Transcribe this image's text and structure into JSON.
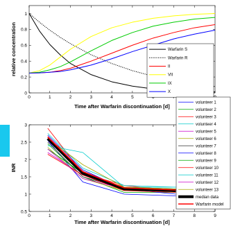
{
  "chart_data": [
    {
      "type": "line",
      "xlabel": "Time after Warfarin discontinuation [d]",
      "ylabel": "relative concentration",
      "xlim": [
        0,
        9
      ],
      "ylim": [
        0,
        1.1
      ],
      "xticks": [
        "0",
        "1",
        "2",
        "3",
        "4",
        "5",
        "6",
        "7",
        "8",
        "9"
      ],
      "yticks": [
        "0",
        "0.2",
        "0.4",
        "0.6",
        "0.8",
        "1"
      ],
      "grid": false,
      "legend_placement": "right",
      "series": [
        {
          "name": "Warfarin S",
          "color": "#000000",
          "dash": "solid",
          "x": [
            0,
            0.5,
            1,
            1.5,
            2,
            3,
            4,
            5,
            6,
            7,
            8,
            9
          ],
          "y": [
            1.0,
            0.78,
            0.61,
            0.48,
            0.37,
            0.23,
            0.14,
            0.085,
            0.05,
            0.03,
            0.02,
            0.012
          ]
        },
        {
          "name": "Warfarin R",
          "color": "#000000",
          "dash": "dotted",
          "x": [
            0,
            0.5,
            1,
            1.5,
            2,
            3,
            4,
            5,
            6,
            7,
            8,
            9
          ],
          "y": [
            1.0,
            0.89,
            0.79,
            0.7,
            0.62,
            0.48,
            0.37,
            0.28,
            0.21,
            0.15,
            0.11,
            0.08
          ]
        },
        {
          "name": "II",
          "color": "#ff0000",
          "dash": "solid",
          "x": [
            0,
            0.5,
            1,
            1.5,
            2,
            3,
            4,
            5,
            6,
            7,
            8,
            9
          ],
          "y": [
            0.25,
            0.252,
            0.26,
            0.28,
            0.31,
            0.4,
            0.5,
            0.6,
            0.69,
            0.76,
            0.82,
            0.86
          ]
        },
        {
          "name": "VII",
          "color": "#ffff00",
          "dash": "solid",
          "x": [
            0,
            0.5,
            1,
            1.5,
            2,
            3,
            4,
            5,
            6,
            7,
            8,
            9
          ],
          "y": [
            0.25,
            0.28,
            0.35,
            0.45,
            0.55,
            0.71,
            0.82,
            0.89,
            0.94,
            0.97,
            0.99,
            1.0
          ]
        },
        {
          "name": "IX",
          "color": "#00cc00",
          "dash": "solid",
          "x": [
            0,
            0.5,
            1,
            1.5,
            2,
            3,
            4,
            5,
            6,
            7,
            8,
            9
          ],
          "y": [
            0.25,
            0.26,
            0.29,
            0.33,
            0.39,
            0.53,
            0.66,
            0.76,
            0.84,
            0.89,
            0.93,
            0.95
          ]
        },
        {
          "name": "X",
          "color": "#0000ff",
          "dash": "solid",
          "x": [
            0,
            0.5,
            1,
            1.5,
            2,
            3,
            4,
            5,
            6,
            7,
            8,
            9
          ],
          "y": [
            0.25,
            0.252,
            0.26,
            0.27,
            0.29,
            0.35,
            0.43,
            0.52,
            0.6,
            0.68,
            0.74,
            0.79
          ]
        }
      ]
    },
    {
      "type": "line",
      "xlabel": "Time after Warfarin discontinuation [d]",
      "ylabel": "INR",
      "xlim": [
        0,
        9
      ],
      "ylim": [
        0.5,
        3
      ],
      "xticks": [
        "0",
        "1",
        "2",
        "3",
        "4",
        "5",
        "6",
        "7",
        "8",
        "9"
      ],
      "yticks": [
        "0.5",
        "1",
        "1.5",
        "2",
        "2.5",
        "3"
      ],
      "grid": false,
      "legend_placement": "right",
      "x": [
        0.9,
        2.6,
        4.6,
        7.1
      ],
      "series": [
        {
          "name": "volunteer 1",
          "color": "#0000ff",
          "width": 0.8,
          "values": [
            2.55,
            1.35,
            1.0,
            0.95
          ]
        },
        {
          "name": "volunteer 2",
          "color": "#00aa00",
          "width": 0.8,
          "values": [
            2.45,
            1.5,
            1.05,
            1.05
          ]
        },
        {
          "name": "volunteer 3",
          "color": "#ff0000",
          "width": 0.8,
          "values": [
            2.9,
            1.6,
            1.25,
            1.1
          ]
        },
        {
          "name": "volunteer 4",
          "color": "#00cccc",
          "width": 0.8,
          "values": [
            2.4,
            2.2,
            1.2,
            1.2
          ]
        },
        {
          "name": "volunteer 5",
          "color": "#cc00cc",
          "width": 0.8,
          "values": [
            2.2,
            1.55,
            1.2,
            1.15
          ]
        },
        {
          "name": "volunteer 6",
          "color": "#aaaa00",
          "width": 0.8,
          "values": [
            2.35,
            1.45,
            1.1,
            1.1
          ]
        },
        {
          "name": "volunteer 7",
          "color": "#333333",
          "width": 0.8,
          "values": [
            2.5,
            1.5,
            1.15,
            1.1
          ]
        },
        {
          "name": "volunteer 8",
          "color": "#0000ff",
          "width": 0.8,
          "values": [
            2.7,
            1.7,
            1.15,
            1.0
          ]
        },
        {
          "name": "volunteer 9",
          "color": "#00aa00",
          "width": 0.8,
          "values": [
            2.3,
            1.6,
            1.2,
            1.15
          ]
        },
        {
          "name": "volunteer 10",
          "color": "#ff0000",
          "width": 0.8,
          "values": [
            2.15,
            1.55,
            1.1,
            1.05
          ]
        },
        {
          "name": "volunteer 11",
          "color": "#00cccc",
          "width": 0.8,
          "values": [
            2.75,
            1.75,
            1.25,
            1.2
          ]
        },
        {
          "name": "volunteer 12",
          "color": "#cc00cc",
          "width": 0.8,
          "values": [
            2.3,
            1.45,
            1.15,
            1.1
          ]
        },
        {
          "name": "volunteer 13",
          "color": "#aaaa00",
          "width": 0.8,
          "values": [
            2.6,
            1.85,
            1.2,
            1.15
          ]
        },
        {
          "name": "median data",
          "color": "#000000",
          "width": 4,
          "values": [
            2.6,
            1.6,
            1.15,
            1.1
          ]
        },
        {
          "name": "Warfarin model",
          "color": "#ff0000",
          "width": 1.6,
          "values": [
            2.65,
            1.65,
            1.18,
            1.12
          ]
        }
      ]
    }
  ],
  "accent_color": "#19c8ee"
}
